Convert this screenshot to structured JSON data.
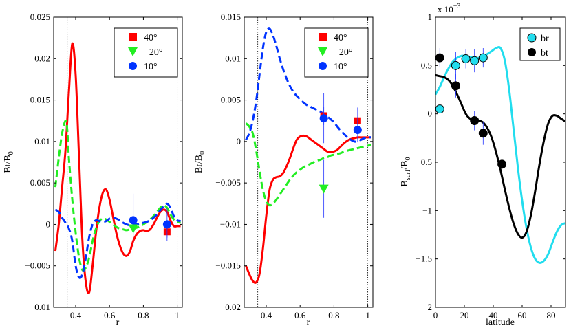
{
  "chart_data": [
    {
      "type": "line",
      "id": "panel1",
      "title": "",
      "xlabel": "r",
      "ylabel": "Bt/B",
      "ylabel_sub": "0",
      "xlim": [
        0.27,
        1.03
      ],
      "ylim": [
        -0.01,
        0.025
      ],
      "xticks": [
        0.4,
        0.6,
        0.8,
        1
      ],
      "xtick_labels": [
        "0.4",
        "0.6",
        "0.8",
        "1"
      ],
      "yticks": [
        -0.01,
        -0.005,
        0,
        0.005,
        0.01,
        0.015,
        0.02,
        0.025
      ],
      "ytick_labels": [
        "−0.01",
        "−0.005",
        "0",
        "0.005",
        "0.01",
        "0.015",
        "0.02",
        "0.025"
      ],
      "vlines": [
        0.35,
        1.0
      ],
      "legend": {
        "position": "top-right"
      },
      "series": [
        {
          "name": "40°",
          "color": "#ff0000",
          "dash": "solid",
          "marker": "square",
          "x": [
            0.28,
            0.3,
            0.32,
            0.34,
            0.36,
            0.38,
            0.4,
            0.42,
            0.44,
            0.46,
            0.48,
            0.5,
            0.52,
            0.54,
            0.56,
            0.58,
            0.6,
            0.62,
            0.64,
            0.66,
            0.68,
            0.7,
            0.72,
            0.74,
            0.76,
            0.78,
            0.8,
            0.82,
            0.84,
            0.86,
            0.88,
            0.9,
            0.92,
            0.94,
            0.96,
            0.98,
            1.0,
            1.02
          ],
          "y": [
            -0.0032,
            0.0,
            0.0045,
            0.009,
            0.016,
            0.0218,
            0.018,
            0.008,
            -0.002,
            -0.007,
            -0.0082,
            -0.005,
            -0.001,
            0.002,
            0.0038,
            0.0042,
            0.003,
            0.001,
            -0.001,
            -0.0025,
            -0.0035,
            -0.0038,
            -0.0033,
            -0.002,
            -0.0012,
            -0.0008,
            -0.0007,
            -0.0008,
            -0.0006,
            0.0,
            0.0008,
            0.0015,
            0.0018,
            0.0015,
            0.0005,
            -0.0002,
            -0.0002,
            -0.0002
          ]
        },
        {
          "name": "−20°",
          "color": "#22ee22",
          "dash": "dashed",
          "marker": "triangle-down",
          "x": [
            0.28,
            0.3,
            0.32,
            0.34,
            0.35,
            0.36,
            0.38,
            0.4,
            0.42,
            0.44,
            0.46,
            0.48,
            0.5,
            0.52,
            0.54,
            0.56,
            0.58,
            0.6,
            0.62,
            0.64,
            0.66,
            0.68,
            0.7,
            0.72,
            0.74,
            0.76,
            0.78,
            0.8,
            0.82,
            0.84,
            0.86,
            0.88,
            0.9,
            0.92,
            0.94,
            0.96,
            0.98,
            1.0,
            1.02
          ],
          "y": [
            0.0045,
            0.008,
            0.011,
            0.0125,
            0.0115,
            0.008,
            0.003,
            -0.001,
            -0.004,
            -0.0055,
            -0.0052,
            -0.004,
            -0.002,
            -0.0005,
            0.0004,
            0.0007,
            0.0006,
            0.0003,
            0.0,
            -0.0003,
            -0.0005,
            -0.0006,
            -0.0007,
            -0.0006,
            -0.0005,
            -0.0004,
            -0.0002,
            0.0,
            0.0003,
            0.0006,
            0.001,
            0.0015,
            0.002,
            0.0023,
            0.002,
            0.0012,
            0.0006,
            0.0003,
            0.0002
          ]
        },
        {
          "name": "10°",
          "color": "#0033ff",
          "dash": "dashed",
          "marker": "circle",
          "x": [
            0.28,
            0.3,
            0.32,
            0.34,
            0.36,
            0.38,
            0.4,
            0.42,
            0.44,
            0.46,
            0.48,
            0.5,
            0.52,
            0.54,
            0.56,
            0.58,
            0.6,
            0.62,
            0.64,
            0.66,
            0.68,
            0.7,
            0.72,
            0.74,
            0.76,
            0.78,
            0.8,
            0.82,
            0.84,
            0.86,
            0.88,
            0.9,
            0.92,
            0.94,
            0.96,
            0.98,
            1.0,
            1.02
          ],
          "y": [
            0.0018,
            0.0015,
            0.0008,
            0.0002,
            -0.0005,
            -0.002,
            -0.005,
            -0.0064,
            -0.006,
            -0.004,
            -0.0015,
            0.0,
            0.0005,
            0.0004,
            0.0003,
            0.0004,
            0.0007,
            0.0008,
            0.0007,
            0.0005,
            0.0002,
            0.0,
            -0.0001,
            -0.0001,
            0.0,
            0.0001,
            0.0002,
            0.0003,
            0.0005,
            0.0008,
            0.0012,
            0.0017,
            0.0022,
            0.0025,
            0.002,
            0.001,
            0.0005,
            0.0004
          ]
        }
      ],
      "points": [
        {
          "series": 0,
          "x": 0.94,
          "y": -0.0009,
          "err": 0.0007
        },
        {
          "series": 1,
          "x": 0.74,
          "y": -0.0005,
          "err": 0.0008
        },
        {
          "series": 2,
          "x": 0.74,
          "y": 0.0005,
          "err": 0.0032
        },
        {
          "series": 2,
          "x": 0.94,
          "y": 0.0,
          "err": 0.002
        }
      ]
    },
    {
      "type": "line",
      "id": "panel2",
      "title": "",
      "xlabel": "r",
      "ylabel": "Br/B",
      "ylabel_sub": "0",
      "xlim": [
        0.27,
        1.03
      ],
      "ylim": [
        -0.02,
        0.015
      ],
      "xticks": [
        0.4,
        0.6,
        0.8,
        1
      ],
      "xtick_labels": [
        "0.4",
        "0.6",
        "0.8",
        "1"
      ],
      "yticks": [
        -0.02,
        -0.015,
        -0.01,
        -0.005,
        0,
        0.005,
        0.01,
        0.015
      ],
      "ytick_labels": [
        "−0.02",
        "−0.015",
        "−0.01",
        "−0.005",
        "0",
        "0.005",
        "0.01",
        "0.015"
      ],
      "vlines": [
        0.35,
        1.0
      ],
      "legend": {
        "position": "top-right"
      },
      "series": [
        {
          "name": "40°",
          "color": "#ff0000",
          "dash": "solid",
          "marker": "square",
          "x": [
            0.28,
            0.3,
            0.32,
            0.34,
            0.36,
            0.38,
            0.4,
            0.42,
            0.44,
            0.46,
            0.48,
            0.5,
            0.52,
            0.54,
            0.56,
            0.58,
            0.6,
            0.62,
            0.64,
            0.66,
            0.68,
            0.7,
            0.72,
            0.74,
            0.76,
            0.78,
            0.8,
            0.82,
            0.84,
            0.86,
            0.88,
            0.9,
            0.92,
            0.94,
            0.96,
            0.98,
            1.0,
            1.02
          ],
          "y": [
            -0.015,
            -0.016,
            -0.0168,
            -0.017,
            -0.016,
            -0.013,
            -0.009,
            -0.0058,
            -0.0046,
            -0.0043,
            -0.0042,
            -0.0038,
            -0.003,
            -0.002,
            -0.0008,
            0.0002,
            0.0006,
            0.0007,
            0.0006,
            0.0003,
            0.0,
            -0.0003,
            -0.0006,
            -0.0009,
            -0.0012,
            -0.0013,
            -0.0012,
            -0.001,
            -0.0006,
            -0.0002,
            0.0001,
            0.0003,
            0.0004,
            0.0005,
            0.0005,
            0.0005,
            0.0005,
            0.0005
          ]
        },
        {
          "name": "−20°",
          "color": "#22ee22",
          "dash": "dashed",
          "marker": "triangle-down",
          "x": [
            0.28,
            0.3,
            0.32,
            0.34,
            0.36,
            0.38,
            0.4,
            0.42,
            0.44,
            0.46,
            0.48,
            0.5,
            0.52,
            0.54,
            0.56,
            0.58,
            0.6,
            0.62,
            0.64,
            0.66,
            0.68,
            0.7,
            0.72,
            0.74,
            0.76,
            0.78,
            0.8,
            0.82,
            0.84,
            0.86,
            0.88,
            0.9,
            0.92,
            0.94,
            0.96,
            0.98,
            1.0,
            1.02
          ],
          "y": [
            0.0022,
            0.0018,
            0.001,
            -0.001,
            -0.0035,
            -0.0058,
            -0.0072,
            -0.0077,
            -0.0075,
            -0.007,
            -0.0064,
            -0.0058,
            -0.0052,
            -0.0046,
            -0.0041,
            -0.0037,
            -0.0034,
            -0.0031,
            -0.0029,
            -0.0027,
            -0.0025,
            -0.0023,
            -0.0022,
            -0.002,
            -0.0019,
            -0.0017,
            -0.0016,
            -0.0015,
            -0.0014,
            -0.0012,
            -0.0011,
            -0.001,
            -0.0009,
            -0.0008,
            -0.0007,
            -0.0006,
            -0.0005,
            -0.0004
          ]
        },
        {
          "name": "10°",
          "color": "#0033ff",
          "dash": "dashed",
          "marker": "circle",
          "x": [
            0.28,
            0.3,
            0.32,
            0.34,
            0.36,
            0.38,
            0.4,
            0.42,
            0.44,
            0.46,
            0.48,
            0.5,
            0.52,
            0.54,
            0.56,
            0.58,
            0.6,
            0.62,
            0.64,
            0.66,
            0.68,
            0.7,
            0.72,
            0.74,
            0.76,
            0.78,
            0.8,
            0.82,
            0.84,
            0.86,
            0.88,
            0.9,
            0.92,
            0.94,
            0.96,
            0.98,
            1.0,
            1.02
          ],
          "y": [
            0.0002,
            0.001,
            0.0025,
            0.0048,
            0.008,
            0.0112,
            0.0132,
            0.0136,
            0.0128,
            0.0115,
            0.01,
            0.0087,
            0.0076,
            0.0067,
            0.006,
            0.0055,
            0.0051,
            0.0047,
            0.0044,
            0.0042,
            0.004,
            0.0038,
            0.0036,
            0.0033,
            0.003,
            0.0027,
            0.0023,
            0.0018,
            0.0013,
            0.0009,
            0.0005,
            0.0002,
            0.0,
            0.0,
            0.0002,
            0.0004,
            0.0005,
            0.0005
          ]
        }
      ],
      "points": [
        {
          "series": 0,
          "x": 0.74,
          "y": 0.0031,
          "err": 0.0011
        },
        {
          "series": 0,
          "x": 0.94,
          "y": 0.0025,
          "err": 0.0016
        },
        {
          "series": 1,
          "x": 0.74,
          "y": -0.0057,
          "err": 0.0035
        },
        {
          "series": 2,
          "x": 0.74,
          "y": 0.0028,
          "err": 0.003
        },
        {
          "series": 2,
          "x": 0.94,
          "y": 0.0014,
          "err": 0.0015
        }
      ]
    },
    {
      "type": "line",
      "id": "panel3",
      "title": "",
      "xlabel": "latitude",
      "ylabel": "B",
      "ylabel_sub": "surf",
      "ylabel_rest": "/B",
      "ylabel_sub2": "0",
      "scale_note": "x 10",
      "scale_exp": "−3",
      "xlim": [
        0,
        90
      ],
      "ylim": [
        -2,
        1
      ],
      "xticks": [
        0,
        20,
        40,
        60,
        80
      ],
      "xtick_labels": [
        "0",
        "20",
        "40",
        "60",
        "80"
      ],
      "yticks": [
        -2,
        -1.5,
        -1,
        -0.5,
        0,
        0.5,
        1
      ],
      "ytick_labels": [
        "−2",
        "−1.5",
        "−1",
        "−0.5",
        "0",
        "0.5",
        "1"
      ],
      "legend": {
        "position": "top-right"
      },
      "series": [
        {
          "name": "br",
          "color": "#22ddee",
          "dash": "solid",
          "marker": "circle",
          "x": [
            0,
            3,
            6,
            9,
            12,
            15,
            18,
            21,
            24,
            27,
            30,
            33,
            36,
            39,
            42,
            45,
            48,
            51,
            54,
            57,
            60,
            63,
            66,
            69,
            72,
            75,
            78,
            81,
            84,
            87,
            90
          ],
          "y": [
            0.2,
            0.28,
            0.38,
            0.47,
            0.54,
            0.58,
            0.6,
            0.6,
            0.59,
            0.58,
            0.58,
            0.59,
            0.62,
            0.65,
            0.68,
            0.68,
            0.55,
            0.25,
            -0.15,
            -0.55,
            -0.9,
            -1.18,
            -1.38,
            -1.5,
            -1.54,
            -1.52,
            -1.45,
            -1.33,
            -1.22,
            -1.15,
            -1.13
          ]
        },
        {
          "name": "bt",
          "color": "#000000",
          "dash": "solid",
          "marker": "circle",
          "x": [
            0,
            3,
            6,
            9,
            12,
            15,
            18,
            21,
            24,
            27,
            30,
            33,
            36,
            39,
            42,
            45,
            48,
            51,
            54,
            57,
            60,
            63,
            66,
            69,
            72,
            75,
            78,
            81,
            84,
            87,
            90
          ],
          "y": [
            0.4,
            0.39,
            0.38,
            0.35,
            0.29,
            0.2,
            0.1,
            0.0,
            -0.05,
            -0.06,
            -0.07,
            -0.09,
            -0.15,
            -0.25,
            -0.4,
            -0.58,
            -0.78,
            -0.97,
            -1.13,
            -1.24,
            -1.28,
            -1.22,
            -1.05,
            -0.8,
            -0.52,
            -0.28,
            -0.1,
            -0.02,
            -0.02,
            -0.05,
            -0.08
          ]
        }
      ],
      "points": [
        {
          "series": 0,
          "x": 3,
          "y": 0.05,
          "err": 0.0
        },
        {
          "series": 0,
          "x": 14,
          "y": 0.5,
          "err": 0.14
        },
        {
          "series": 0,
          "x": 21,
          "y": 0.57,
          "err": 0.1
        },
        {
          "series": 0,
          "x": 27,
          "y": 0.55,
          "err": 0.12
        },
        {
          "series": 0,
          "x": 33,
          "y": 0.58,
          "err": 0.1
        },
        {
          "series": 1,
          "x": 3,
          "y": 0.58,
          "err": 0.1
        },
        {
          "series": 1,
          "x": 14,
          "y": 0.29,
          "err": 0.12
        },
        {
          "series": 1,
          "x": 27,
          "y": -0.07,
          "err": 0.1
        },
        {
          "series": 1,
          "x": 33,
          "y": -0.2,
          "err": 0.12
        },
        {
          "series": 1,
          "x": 46,
          "y": -0.52,
          "err": 0.1
        }
      ]
    }
  ]
}
